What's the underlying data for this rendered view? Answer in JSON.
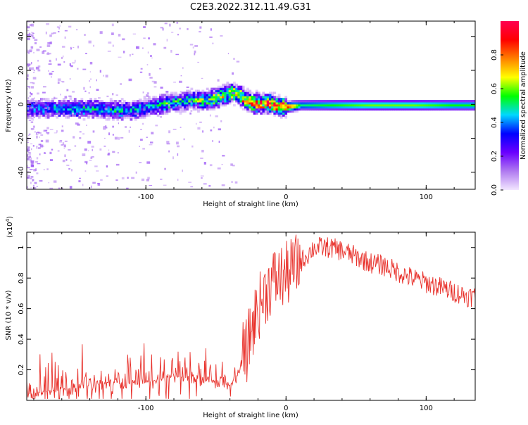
{
  "title": "C2E3.2022.312.11.49.G31",
  "colors": {
    "snr_line": "#e8302a",
    "axis": "#000000"
  },
  "chart_data": [
    {
      "type": "heatmap",
      "xlabel": "Height of straight line (km)",
      "ylabel": "Frequency (Hz)",
      "xlim": [
        -185,
        135
      ],
      "ylim": [
        -50,
        49
      ],
      "x_ticks": [
        -100,
        0,
        100
      ],
      "y_ticks": [
        40,
        20,
        0,
        -20,
        -40
      ],
      "colorbar": {
        "label": "Normalized spectral amplitude",
        "range": [
          0,
          1
        ],
        "ticks": [
          "0.0",
          "0.2",
          "0.4",
          "0.6",
          "0.8"
        ],
        "colormap": "rainbow",
        "colors": [
          "#f2e6ff",
          "#b07af0",
          "#6a00ff",
          "#0000ff",
          "#00d8ff",
          "#00ff00",
          "#ffff00",
          "#ff8000",
          "#ff0000",
          "#ff0050"
        ]
      },
      "ridge": {
        "height_km": [
          -185,
          -165,
          -150,
          -135,
          -120,
          -110,
          -100,
          -85,
          -70,
          -60,
          -50,
          -42,
          -35,
          -30,
          -25,
          -20,
          -12,
          -5,
          0,
          10,
          30,
          60,
          90,
          120,
          135
        ],
        "frequency_hz": [
          -3,
          -3,
          -3,
          -3,
          -4,
          -4,
          -2,
          0,
          2,
          2,
          3,
          6,
          6,
          2,
          0,
          0,
          0,
          -2,
          -2,
          -1,
          -1,
          -1,
          -1,
          -1,
          -1
        ],
        "peak_amplitude": [
          0.4,
          0.45,
          0.5,
          0.45,
          0.5,
          0.45,
          0.45,
          0.55,
          0.55,
          0.6,
          0.7,
          0.7,
          0.75,
          0.85,
          0.9,
          0.95,
          0.9,
          0.9,
          0.9,
          0.5,
          0.55,
          0.6,
          0.6,
          0.55,
          0.55
        ]
      }
    },
    {
      "type": "line",
      "xlabel": "Height of straight line (km)",
      "ylabel": "SNR (10 * v/v)",
      "y_multiplier": "(x10",
      "y_exponent": "4",
      "y_multiplier_close": ")",
      "xlim": [
        -185,
        135
      ],
      "ylim": [
        0,
        1.1
      ],
      "x_ticks": [
        -100,
        0,
        100
      ],
      "y_ticks": [
        0.2,
        0.4,
        0.6,
        0.8,
        1
      ],
      "series": [
        {
          "x": [
            -185,
            -170,
            -155,
            -140,
            -125,
            -110,
            -100,
            -90,
            -80,
            -70,
            -60,
            -50,
            -40,
            -35,
            -30,
            -25,
            -20,
            -15,
            -10,
            -5,
            0,
            10,
            20,
            30,
            40,
            50,
            60,
            70,
            80,
            90,
            100,
            110,
            120,
            130,
            135
          ],
          "y": [
            0.04,
            0.06,
            0.08,
            0.1,
            0.12,
            0.1,
            0.12,
            0.13,
            0.15,
            0.16,
            0.13,
            0.12,
            0.1,
            0.16,
            0.25,
            0.45,
            0.6,
            0.7,
            0.78,
            0.8,
            0.82,
            0.9,
            1.0,
            1.0,
            0.98,
            0.94,
            0.9,
            0.88,
            0.84,
            0.8,
            0.77,
            0.74,
            0.71,
            0.68,
            0.68
          ]
        }
      ]
    }
  ]
}
